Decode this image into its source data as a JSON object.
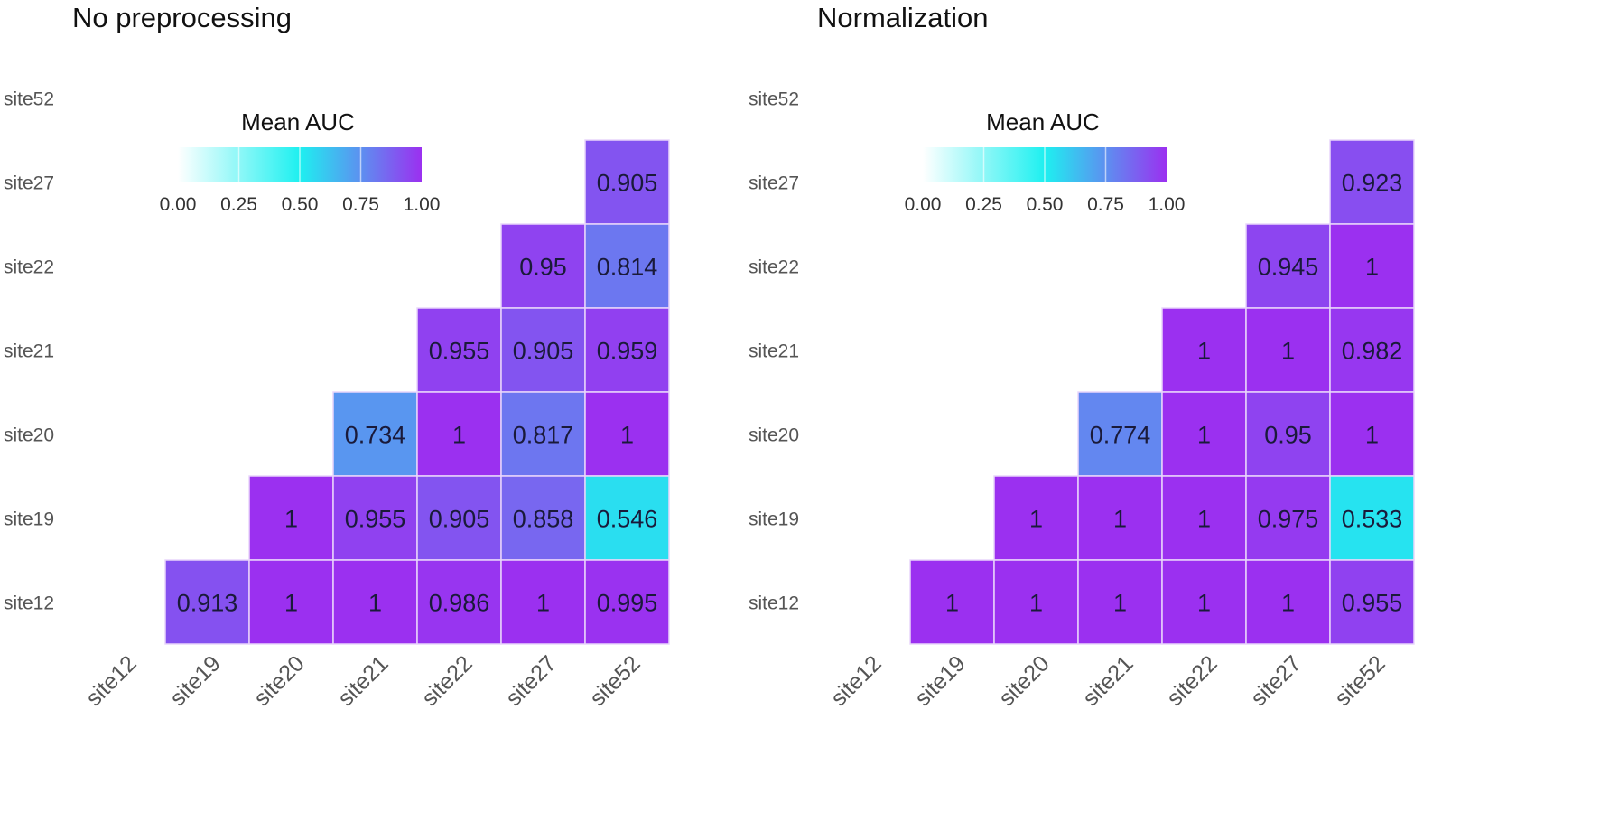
{
  "chart_data": [
    {
      "type": "heatmap",
      "title": "No preprocessing",
      "legend": {
        "title": "Mean AUC",
        "ticks": [
          "0.00",
          "0.25",
          "0.50",
          "0.75",
          "1.00"
        ],
        "range": [
          0,
          1
        ],
        "placement": "top-left-inside"
      },
      "colorscale": [
        [
          0,
          "#ffffff"
        ],
        [
          0.5,
          "#1ef0f0"
        ],
        [
          1,
          "#9b30f0"
        ]
      ],
      "x_categories": [
        "site12",
        "site19",
        "site20",
        "site21",
        "site22",
        "site27",
        "site52"
      ],
      "y_categories": [
        "site52",
        "site27",
        "site22",
        "site21",
        "site20",
        "site19",
        "site12"
      ],
      "cells": [
        {
          "y": "site27",
          "x": "site52",
          "value": 0.905,
          "label": "0.905"
        },
        {
          "y": "site22",
          "x": "site27",
          "value": 0.95,
          "label": "0.95"
        },
        {
          "y": "site22",
          "x": "site52",
          "value": 0.814,
          "label": "0.814"
        },
        {
          "y": "site21",
          "x": "site22",
          "value": 0.955,
          "label": "0.955"
        },
        {
          "y": "site21",
          "x": "site27",
          "value": 0.905,
          "label": "0.905"
        },
        {
          "y": "site21",
          "x": "site52",
          "value": 0.959,
          "label": "0.959"
        },
        {
          "y": "site20",
          "x": "site21",
          "value": 0.734,
          "label": "0.734"
        },
        {
          "y": "site20",
          "x": "site22",
          "value": 1,
          "label": "1"
        },
        {
          "y": "site20",
          "x": "site27",
          "value": 0.817,
          "label": "0.817"
        },
        {
          "y": "site20",
          "x": "site52",
          "value": 1,
          "label": "1"
        },
        {
          "y": "site19",
          "x": "site20",
          "value": 1,
          "label": "1"
        },
        {
          "y": "site19",
          "x": "site21",
          "value": 0.955,
          "label": "0.955"
        },
        {
          "y": "site19",
          "x": "site22",
          "value": 0.905,
          "label": "0.905"
        },
        {
          "y": "site19",
          "x": "site27",
          "value": 0.858,
          "label": "0.858"
        },
        {
          "y": "site19",
          "x": "site52",
          "value": 0.546,
          "label": "0.546"
        },
        {
          "y": "site12",
          "x": "site19",
          "value": 0.913,
          "label": "0.913"
        },
        {
          "y": "site12",
          "x": "site20",
          "value": 1,
          "label": "1"
        },
        {
          "y": "site12",
          "x": "site21",
          "value": 1,
          "label": "1"
        },
        {
          "y": "site12",
          "x": "site22",
          "value": 0.986,
          "label": "0.986"
        },
        {
          "y": "site12",
          "x": "site27",
          "value": 1,
          "label": "1"
        },
        {
          "y": "site12",
          "x": "site52",
          "value": 0.995,
          "label": "0.995"
        }
      ]
    },
    {
      "type": "heatmap",
      "title": "Normalization",
      "legend": {
        "title": "Mean AUC",
        "ticks": [
          "0.00",
          "0.25",
          "0.50",
          "0.75",
          "1.00"
        ],
        "range": [
          0,
          1
        ],
        "placement": "top-left-inside"
      },
      "colorscale": [
        [
          0,
          "#ffffff"
        ],
        [
          0.5,
          "#1ef0f0"
        ],
        [
          1,
          "#9b30f0"
        ]
      ],
      "x_categories": [
        "site12",
        "site19",
        "site20",
        "site21",
        "site22",
        "site27",
        "site52"
      ],
      "y_categories": [
        "site52",
        "site27",
        "site22",
        "site21",
        "site20",
        "site19",
        "site12"
      ],
      "cells": [
        {
          "y": "site27",
          "x": "site52",
          "value": 0.923,
          "label": "0.923"
        },
        {
          "y": "site22",
          "x": "site27",
          "value": 0.945,
          "label": "0.945"
        },
        {
          "y": "site22",
          "x": "site52",
          "value": 1,
          "label": "1"
        },
        {
          "y": "site21",
          "x": "site22",
          "value": 1,
          "label": "1"
        },
        {
          "y": "site21",
          "x": "site27",
          "value": 1,
          "label": "1"
        },
        {
          "y": "site21",
          "x": "site52",
          "value": 0.982,
          "label": "0.982"
        },
        {
          "y": "site20",
          "x": "site21",
          "value": 0.774,
          "label": "0.774"
        },
        {
          "y": "site20",
          "x": "site22",
          "value": 1,
          "label": "1"
        },
        {
          "y": "site20",
          "x": "site27",
          "value": 0.95,
          "label": "0.95"
        },
        {
          "y": "site20",
          "x": "site52",
          "value": 1,
          "label": "1"
        },
        {
          "y": "site19",
          "x": "site20",
          "value": 1,
          "label": "1"
        },
        {
          "y": "site19",
          "x": "site21",
          "value": 1,
          "label": "1"
        },
        {
          "y": "site19",
          "x": "site22",
          "value": 1,
          "label": "1"
        },
        {
          "y": "site19",
          "x": "site27",
          "value": 0.975,
          "label": "0.975"
        },
        {
          "y": "site19",
          "x": "site52",
          "value": 0.533,
          "label": "0.533"
        },
        {
          "y": "site12",
          "x": "site19",
          "value": 1,
          "label": "1"
        },
        {
          "y": "site12",
          "x": "site20",
          "value": 1,
          "label": "1"
        },
        {
          "y": "site12",
          "x": "site21",
          "value": 1,
          "label": "1"
        },
        {
          "y": "site12",
          "x": "site22",
          "value": 1,
          "label": "1"
        },
        {
          "y": "site12",
          "x": "site27",
          "value": 1,
          "label": "1"
        },
        {
          "y": "site12",
          "x": "site52",
          "value": 0.955,
          "label": "0.955"
        }
      ]
    }
  ]
}
